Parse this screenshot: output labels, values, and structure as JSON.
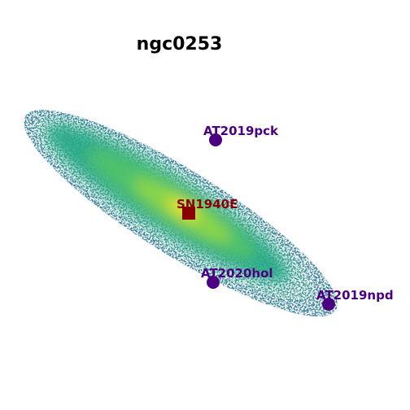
{
  "title": "ngc0253",
  "colors": {
    "transient_marker": "#4b0082",
    "supernova_marker": "#8b0000",
    "colormap": [
      "#3e4a89",
      "#2a788e",
      "#22a884",
      "#7ad151",
      "#fde725"
    ]
  },
  "markers": [
    {
      "label": "AT2019pck",
      "shape": "circle",
      "kind": "transient"
    },
    {
      "label": "SN1940E",
      "shape": "square",
      "kind": "supernova"
    },
    {
      "label": "AT2020hol",
      "shape": "circle",
      "kind": "transient"
    },
    {
      "label": "AT2019npd",
      "shape": "circle",
      "kind": "transient"
    }
  ]
}
